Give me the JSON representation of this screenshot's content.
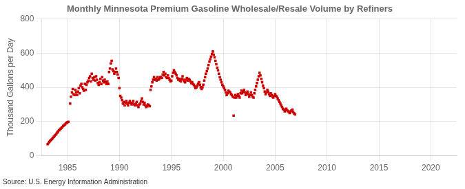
{
  "chart_data": {
    "type": "scatter",
    "title": "Monthly Minnesota Premium Gasoline Wholesale/Resale Volume by Refiners",
    "ylabel": "Thousand Gallons per Day",
    "source": "Source: U.S. Energy Information Administration",
    "xlim": [
      1982.5,
      2022.5
    ],
    "ylim": [
      0,
      800
    ],
    "xticks": [
      1985,
      1990,
      1995,
      2000,
      2005,
      2010,
      2015,
      2020
    ],
    "yticks": [
      0,
      200,
      400,
      600,
      800
    ],
    "grid": true,
    "color": "#cc0000",
    "marker": "square",
    "x": [
      1983.08,
      1983.17,
      1983.25,
      1983.33,
      1983.42,
      1983.5,
      1983.58,
      1983.67,
      1983.75,
      1983.83,
      1983.92,
      1984.0,
      1984.08,
      1984.17,
      1984.25,
      1984.33,
      1984.42,
      1984.5,
      1984.58,
      1984.67,
      1984.75,
      1984.83,
      1984.92,
      1985.0,
      1985.08,
      1985.25,
      1985.33,
      1985.42,
      1985.5,
      1985.58,
      1985.67,
      1985.75,
      1985.83,
      1985.92,
      1986.0,
      1986.08,
      1986.17,
      1986.25,
      1986.33,
      1986.42,
      1986.5,
      1986.58,
      1986.67,
      1986.75,
      1986.83,
      1986.92,
      1987.0,
      1987.08,
      1987.17,
      1987.25,
      1987.33,
      1987.42,
      1987.5,
      1987.58,
      1987.67,
      1987.75,
      1987.83,
      1987.92,
      1988.0,
      1988.08,
      1988.17,
      1988.25,
      1988.33,
      1988.42,
      1988.5,
      1988.58,
      1988.67,
      1988.75,
      1988.83,
      1988.92,
      1989.0,
      1989.08,
      1989.17,
      1989.25,
      1989.33,
      1989.42,
      1989.5,
      1989.58,
      1989.67,
      1989.75,
      1989.83,
      1989.92,
      1990.0,
      1990.08,
      1990.17,
      1990.25,
      1990.33,
      1990.42,
      1990.5,
      1990.58,
      1990.67,
      1990.75,
      1990.83,
      1990.92,
      1991.0,
      1991.08,
      1991.17,
      1991.25,
      1991.33,
      1991.42,
      1991.5,
      1991.58,
      1991.67,
      1991.75,
      1991.83,
      1991.92,
      1992.0,
      1992.08,
      1992.17,
      1992.25,
      1992.33,
      1992.42,
      1992.5,
      1992.58,
      1992.67,
      1992.75,
      1992.83,
      1992.92,
      1993.0,
      1993.08,
      1993.17,
      1993.25,
      1993.33,
      1993.42,
      1993.5,
      1993.58,
      1993.67,
      1993.75,
      1993.83,
      1993.92,
      1994.0,
      1994.08,
      1994.17,
      1994.25,
      1994.33,
      1994.42,
      1994.5,
      1994.58,
      1994.67,
      1994.75,
      1994.83,
      1994.92,
      1995.0,
      1995.08,
      1995.17,
      1995.25,
      1995.33,
      1995.42,
      1995.5,
      1995.58,
      1995.67,
      1995.75,
      1995.83,
      1995.92,
      1996.0,
      1996.08,
      1996.17,
      1996.25,
      1996.33,
      1996.42,
      1996.5,
      1996.58,
      1996.67,
      1996.75,
      1996.83,
      1996.92,
      1997.0,
      1997.08,
      1997.17,
      1997.25,
      1997.33,
      1997.42,
      1997.5,
      1997.58,
      1997.67,
      1997.75,
      1997.83,
      1997.92,
      1998.0,
      1998.08,
      1998.17,
      1998.25,
      1998.33,
      1998.42,
      1998.5,
      1998.58,
      1998.67,
      1998.75,
      1998.83,
      1998.92,
      1999.0,
      1999.08,
      1999.17,
      1999.25,
      1999.33,
      1999.42,
      1999.5,
      1999.58,
      1999.67,
      1999.75,
      1999.83,
      1999.92,
      2000.0,
      2000.08,
      2000.17,
      2000.25,
      2000.33,
      2000.42,
      2000.5,
      2000.58,
      2000.67,
      2000.75,
      2000.83,
      2000.92,
      2001.0,
      2001.08,
      2001.17,
      2001.25,
      2001.33,
      2001.42,
      2001.5,
      2001.58,
      2001.67,
      2001.75,
      2001.83,
      2001.92,
      2002.0,
      2002.08,
      2002.17,
      2002.25,
      2002.33,
      2002.42,
      2002.5,
      2002.58,
      2002.67,
      2002.75,
      2002.83,
      2002.92,
      2003.0,
      2003.08,
      2003.17,
      2003.25,
      2003.33,
      2003.42,
      2003.5,
      2003.58,
      2003.67,
      2003.75,
      2003.83,
      2003.92,
      2004.0,
      2004.08,
      2004.17,
      2004.25,
      2004.33,
      2004.42,
      2004.5,
      2004.58,
      2004.67,
      2004.75,
      2004.83,
      2004.92,
      2005.0,
      2005.08,
      2005.17,
      2005.25,
      2005.33,
      2005.42,
      2005.5,
      2005.58,
      2005.67,
      2005.75,
      2005.83,
      2005.92,
      2006.0,
      2006.08,
      2006.17,
      2006.25,
      2006.33,
      2006.42,
      2006.5,
      2006.58,
      2006.67,
      2006.75,
      2006.83,
      2006.92
    ],
    "values": [
      68,
      75,
      82,
      88,
      93,
      98,
      104,
      110,
      116,
      122,
      128,
      135,
      142,
      148,
      152,
      158,
      163,
      168,
      174,
      178,
      183,
      188,
      193,
      196,
      198,
      305,
      345,
      370,
      390,
      360,
      355,
      385,
      370,
      355,
      375,
      395,
      365,
      410,
      420,
      400,
      390,
      380,
      420,
      385,
      415,
      430,
      440,
      455,
      465,
      435,
      480,
      455,
      445,
      460,
      440,
      465,
      445,
      425,
      415,
      430,
      450,
      420,
      460,
      440,
      430,
      445,
      430,
      420,
      435,
      420,
      490,
      510,
      540,
      555,
      505,
      495,
      480,
      490,
      510,
      490,
      475,
      455,
      395,
      350,
      340,
      325,
      305,
      315,
      295,
      310,
      320,
      305,
      295,
      310,
      320,
      310,
      300,
      310,
      320,
      300,
      295,
      305,
      315,
      295,
      285,
      300,
      305,
      320,
      335,
      315,
      300,
      310,
      295,
      285,
      290,
      300,
      295,
      290,
      385,
      405,
      430,
      445,
      460,
      445,
      450,
      440,
      460,
      445,
      450,
      460,
      460,
      455,
      475,
      490,
      470,
      480,
      460,
      455,
      470,
      455,
      445,
      435,
      440,
      465,
      485,
      500,
      490,
      480,
      470,
      455,
      445,
      450,
      440,
      435,
      450,
      465,
      445,
      435,
      430,
      445,
      455,
      440,
      450,
      445,
      435,
      425,
      430,
      420,
      415,
      405,
      395,
      400,
      410,
      420,
      430,
      415,
      400,
      390,
      400,
      415,
      440,
      460,
      480,
      495,
      510,
      530,
      550,
      565,
      580,
      595,
      610,
      590,
      575,
      555,
      535,
      515,
      500,
      480,
      460,
      445,
      430,
      415,
      405,
      395,
      385,
      370,
      355,
      365,
      380,
      375,
      370,
      360,
      355,
      345,
      235,
      340,
      355,
      340,
      350,
      360,
      350,
      340,
      365,
      380,
      365,
      375,
      385,
      370,
      355,
      365,
      375,
      360,
      345,
      355,
      370,
      355,
      345,
      340,
      365,
      385,
      405,
      425,
      445,
      465,
      485,
      470,
      450,
      430,
      410,
      395,
      375,
      360,
      370,
      385,
      375,
      360,
      350,
      365,
      355,
      345,
      340,
      350,
      360,
      350,
      345,
      335,
      325,
      315,
      305,
      295,
      285,
      275,
      270,
      260,
      270,
      275,
      265,
      260,
      255,
      250,
      260,
      265,
      270,
      255,
      248,
      242
    ]
  }
}
